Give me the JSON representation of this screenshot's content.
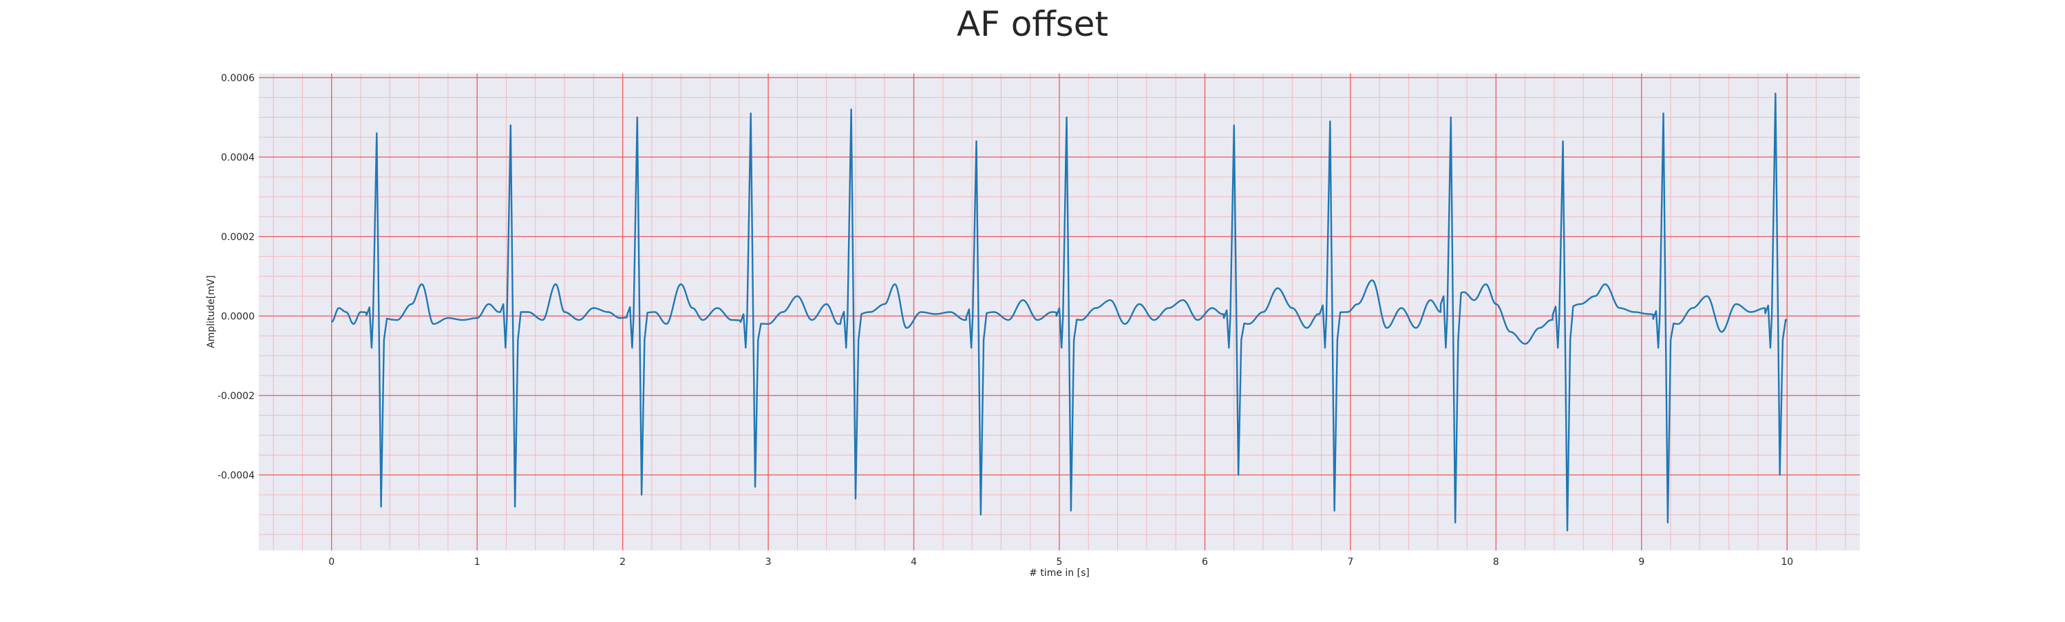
{
  "chart_data": {
    "type": "line",
    "title": "AF offset",
    "xlabel": "# time in [s]",
    "ylabel": "Amplitude[mV]",
    "xlim": [
      -0.5,
      10.5
    ],
    "ylim": [
      -0.00059,
      0.00061
    ],
    "x_ticks": [
      0,
      1,
      2,
      3,
      4,
      5,
      6,
      7,
      8,
      9,
      10
    ],
    "x_tick_labels": [
      "0",
      "1",
      "2",
      "3",
      "4",
      "5",
      "6",
      "7",
      "8",
      "9",
      "10"
    ],
    "y_ticks": [
      -0.0004,
      -0.0002,
      0.0,
      0.0002,
      0.0004,
      0.0006
    ],
    "y_tick_labels": [
      "-0.0004",
      "-0.0002",
      "0.0000",
      "0.0002",
      "0.0004",
      "0.0006"
    ],
    "grid": "major and minor, red",
    "legend": "none",
    "series": [
      {
        "color": "#1f77b4",
        "beats": [
          {
            "t": 0.31,
            "r": 0.00046,
            "s": -0.00048
          },
          {
            "t": 1.23,
            "r": 0.00048,
            "s": -0.00048
          },
          {
            "t": 2.1,
            "r": 0.0005,
            "s": -0.00045
          },
          {
            "t": 2.88,
            "r": 0.00051,
            "s": -0.00043
          },
          {
            "t": 3.57,
            "r": 0.00052,
            "s": -0.00046
          },
          {
            "t": 4.43,
            "r": 0.00044,
            "s": -0.0005
          },
          {
            "t": 5.05,
            "r": 0.0005,
            "s": -0.00049
          },
          {
            "t": 6.2,
            "r": 0.00048,
            "s": -0.0004
          },
          {
            "t": 6.86,
            "r": 0.00049,
            "s": -0.00049
          },
          {
            "t": 7.69,
            "r": 0.0005,
            "s": -0.00052
          },
          {
            "t": 8.46,
            "r": 0.00044,
            "s": -0.00054
          },
          {
            "t": 9.15,
            "r": 0.00051,
            "s": -0.00052
          },
          {
            "t": 9.92,
            "r": 0.00056,
            "s": -0.0004
          }
        ],
        "baseline": [
          [
            0.0,
            -1.5e-05
          ],
          [
            0.05,
            2e-05
          ],
          [
            0.1,
            1e-05
          ],
          [
            0.15,
            -2e-05
          ],
          [
            0.2,
            1e-05
          ],
          [
            0.45,
            -1e-05
          ],
          [
            0.55,
            3e-05
          ],
          [
            0.62,
            8e-05
          ],
          [
            0.7,
            -2e-05
          ],
          [
            0.8,
            -5e-06
          ],
          [
            0.9,
            -1e-05
          ],
          [
            1.0,
            -5e-06
          ],
          [
            1.08,
            3e-05
          ],
          [
            1.15,
            1e-05
          ],
          [
            1.35,
            1e-05
          ],
          [
            1.45,
            -1e-05
          ],
          [
            1.54,
            8e-05
          ],
          [
            1.6,
            1e-05
          ],
          [
            1.7,
            -1e-05
          ],
          [
            1.8,
            2e-05
          ],
          [
            1.9,
            1e-05
          ],
          [
            1.98,
            -5e-06
          ],
          [
            2.22,
            1e-05
          ],
          [
            2.3,
            -2e-05
          ],
          [
            2.4,
            8e-05
          ],
          [
            2.48,
            2e-05
          ],
          [
            2.55,
            -1e-05
          ],
          [
            2.65,
            2e-05
          ],
          [
            2.75,
            -1e-05
          ],
          [
            3.0,
            -2e-05
          ],
          [
            3.1,
            1e-05
          ],
          [
            3.2,
            5e-05
          ],
          [
            3.3,
            -1e-05
          ],
          [
            3.4,
            3e-05
          ],
          [
            3.48,
            -2e-05
          ],
          [
            3.7,
            1e-05
          ],
          [
            3.8,
            3e-05
          ],
          [
            3.87,
            8e-05
          ],
          [
            3.95,
            -3e-05
          ],
          [
            4.05,
            1e-05
          ],
          [
            4.15,
            5e-06
          ],
          [
            4.25,
            1e-05
          ],
          [
            4.35,
            -1e-05
          ],
          [
            4.55,
            1e-05
          ],
          [
            4.65,
            -1e-05
          ],
          [
            4.75,
            4e-05
          ],
          [
            4.85,
            -1e-05
          ],
          [
            4.95,
            1e-05
          ],
          [
            5.15,
            -1e-05
          ],
          [
            5.25,
            2e-05
          ],
          [
            5.35,
            4e-05
          ],
          [
            5.45,
            -2e-05
          ],
          [
            5.55,
            3e-05
          ],
          [
            5.65,
            -1e-05
          ],
          [
            5.75,
            2e-05
          ],
          [
            5.85,
            4e-05
          ],
          [
            5.95,
            -1e-05
          ],
          [
            6.05,
            2e-05
          ],
          [
            6.12,
            5e-06
          ],
          [
            6.3,
            -2e-05
          ],
          [
            6.4,
            1e-05
          ],
          [
            6.5,
            7e-05
          ],
          [
            6.6,
            2e-05
          ],
          [
            6.7,
            -3e-05
          ],
          [
            6.78,
            5e-06
          ],
          [
            6.98,
            1e-05
          ],
          [
            7.05,
            3e-05
          ],
          [
            7.15,
            9e-05
          ],
          [
            7.25,
            -3e-05
          ],
          [
            7.35,
            2e-05
          ],
          [
            7.45,
            -3e-05
          ],
          [
            7.55,
            4e-05
          ],
          [
            7.62,
            1e-05
          ],
          [
            7.78,
            6e-05
          ],
          [
            7.85,
            4e-05
          ],
          [
            7.93,
            8e-05
          ],
          [
            8.0,
            3e-05
          ],
          [
            8.1,
            -4e-05
          ],
          [
            8.2,
            -7e-05
          ],
          [
            8.3,
            -3e-05
          ],
          [
            8.38,
            -1e-05
          ],
          [
            8.58,
            3e-05
          ],
          [
            8.68,
            5e-05
          ],
          [
            8.75,
            8e-05
          ],
          [
            8.85,
            2e-05
          ],
          [
            8.95,
            1e-05
          ],
          [
            9.05,
            5e-06
          ],
          [
            9.25,
            -2e-05
          ],
          [
            9.35,
            2e-05
          ],
          [
            9.45,
            5e-05
          ],
          [
            9.55,
            -4e-05
          ],
          [
            9.65,
            3e-05
          ],
          [
            9.75,
            1e-05
          ],
          [
            9.85,
            2e-05
          ],
          [
            10.0,
            -1e-05
          ]
        ]
      }
    ]
  }
}
